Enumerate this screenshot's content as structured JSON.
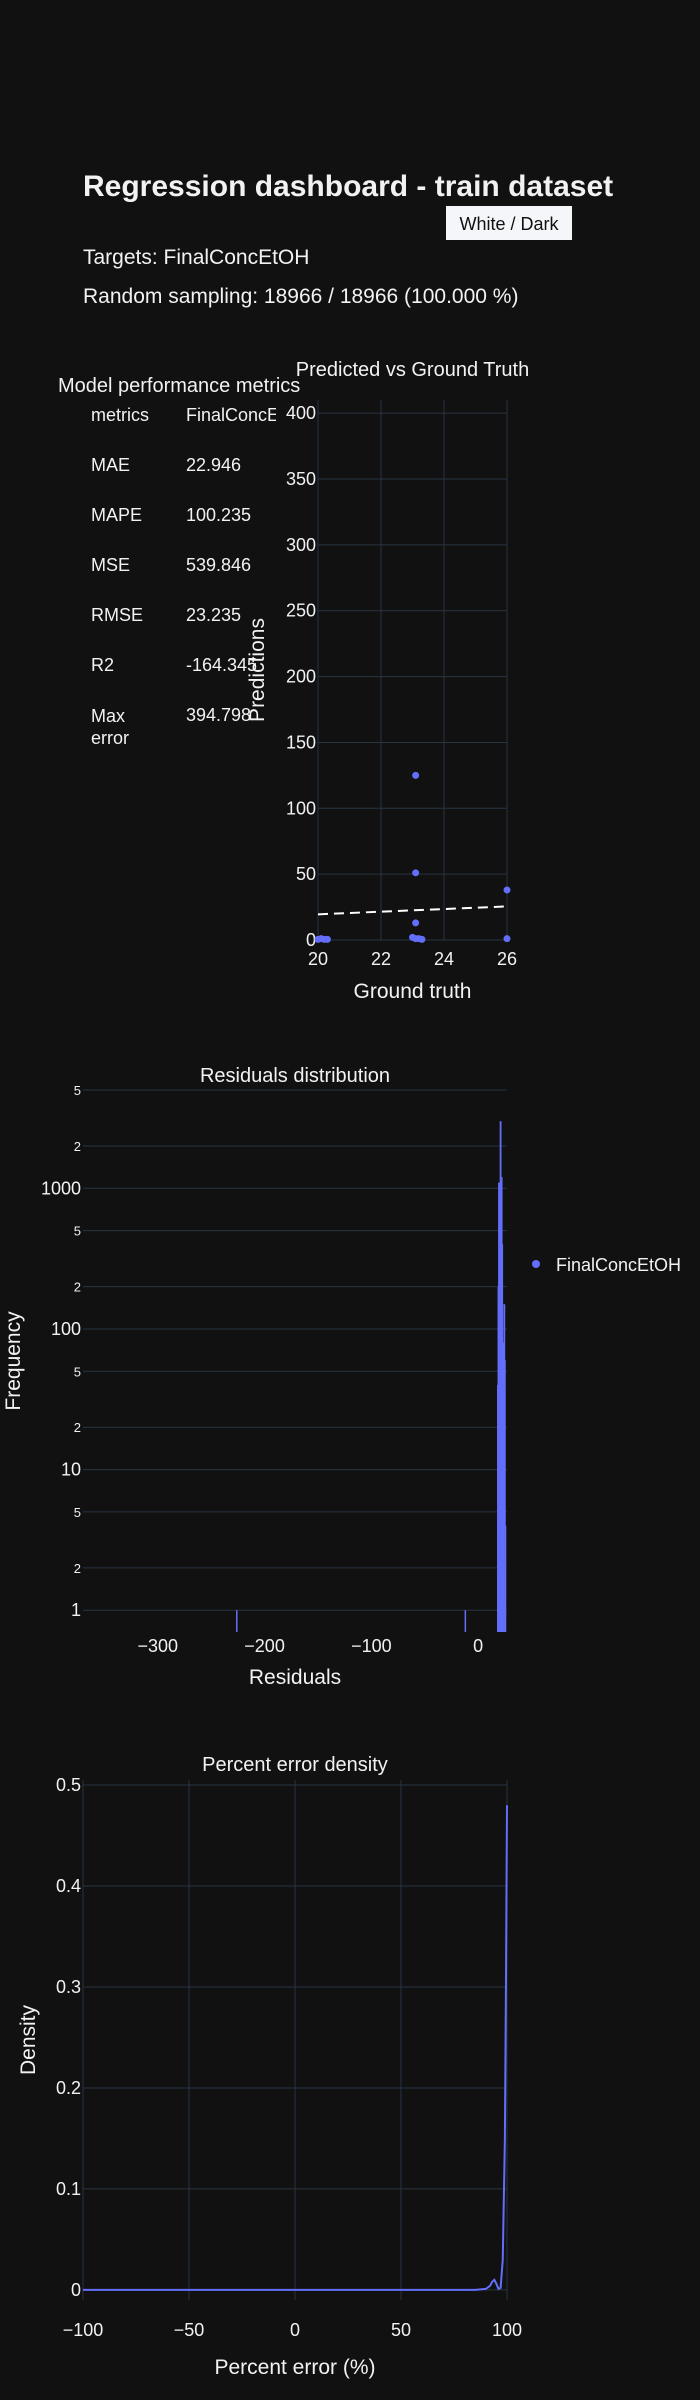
{
  "header": {
    "title": "Regression dashboard - train dataset",
    "targets": "Targets: FinalConcEtOH",
    "sampling": "Random sampling: 18966 / 18966 (100.000 %)",
    "theme_button": "White / Dark"
  },
  "metrics": {
    "title": "Model performance metrics",
    "col_header": "metrics",
    "target_header": "FinalConcEtOH",
    "rows": [
      {
        "name": "MAE",
        "value": "22.946"
      },
      {
        "name": "MAPE",
        "value": "100.235"
      },
      {
        "name": "MSE",
        "value": "539.846"
      },
      {
        "name": "RMSE",
        "value": "23.235"
      },
      {
        "name": "R2",
        "value": "-164.345"
      },
      {
        "name": "Max error",
        "value": "394.798"
      }
    ]
  },
  "colors": {
    "accent": "#636efa",
    "background": "#111111",
    "grid": "#283442",
    "text": "#f2f2f2"
  },
  "chart_data": [
    {
      "type": "scatter",
      "title": "Predicted vs Ground Truth",
      "xlabel": "Ground truth",
      "ylabel": "Predictions",
      "xlim": [
        20,
        26
      ],
      "ylim": [
        0,
        410
      ],
      "x_ticks": [
        20,
        22,
        24,
        26
      ],
      "y_ticks": [
        0,
        50,
        100,
        150,
        200,
        250,
        300,
        350,
        400
      ],
      "points": [
        {
          "x": 20.0,
          "y": 0.5
        },
        {
          "x": 20.1,
          "y": 1
        },
        {
          "x": 20.2,
          "y": 0.5
        },
        {
          "x": 20.3,
          "y": 0.5
        },
        {
          "x": 23.1,
          "y": 125
        },
        {
          "x": 23.1,
          "y": 51
        },
        {
          "x": 23.1,
          "y": 13
        },
        {
          "x": 23.0,
          "y": 2
        },
        {
          "x": 23.1,
          "y": 1
        },
        {
          "x": 23.2,
          "y": 1
        },
        {
          "x": 23.3,
          "y": 0.5
        },
        {
          "x": 26.0,
          "y": 38
        },
        {
          "x": 26.0,
          "y": 1
        }
      ],
      "fit_line": {
        "x": [
          20,
          26
        ],
        "y": [
          19.5,
          25.5
        ]
      },
      "grid": true
    },
    {
      "type": "bar",
      "title": "Residuals distribution",
      "xlabel": "Residuals",
      "ylabel": "Frequency",
      "y_scale": "log",
      "xlim": [
        -370,
        27
      ],
      "ylim": [
        0.7,
        5000
      ],
      "x_ticks": [
        -300,
        -200,
        -100,
        0
      ],
      "y_major_ticks": [
        1,
        10,
        100,
        1000
      ],
      "y_minor_ticks": [
        2,
        5,
        20,
        50,
        200,
        500,
        2000,
        5000
      ],
      "legend": "right",
      "series": [
        {
          "name": "FinalConcEtOH",
          "bins": [
            {
              "x": -226,
              "count": 1
            },
            {
              "x": -12,
              "count": 1
            },
            {
              "x": 18.5,
              "count": 40
            },
            {
              "x": 19,
              "count": 200
            },
            {
              "x": 19.5,
              "count": 1100
            },
            {
              "x": 20,
              "count": 60
            },
            {
              "x": 20.5,
              "count": 900
            },
            {
              "x": 21,
              "count": 3000
            },
            {
              "x": 21.5,
              "count": 150
            },
            {
              "x": 22,
              "count": 1200
            },
            {
              "x": 22.5,
              "count": 400
            },
            {
              "x": 23,
              "count": 80
            },
            {
              "x": 23.5,
              "count": 5
            },
            {
              "x": 24,
              "count": 3
            },
            {
              "x": 24.5,
              "count": 150
            },
            {
              "x": 25,
              "count": 60
            },
            {
              "x": 25.5,
              "count": 4
            }
          ]
        }
      ]
    },
    {
      "type": "line",
      "title": "Percent error density",
      "xlabel": "Percent error (%)",
      "ylabel": "Density",
      "xlim": [
        -100,
        100
      ],
      "ylim": [
        -0.01,
        0.505
      ],
      "x_ticks": [
        -100,
        -50,
        0,
        50,
        100
      ],
      "y_ticks": [
        0,
        0.1,
        0.2,
        0.3,
        0.4,
        0.5
      ],
      "x": [
        -100,
        -50,
        0,
        50,
        85,
        90,
        92,
        93,
        94,
        95,
        96,
        97,
        98,
        99,
        99.5,
        100
      ],
      "y": [
        0,
        0,
        0,
        0,
        0,
        0.001,
        0.004,
        0.008,
        0.01,
        0.006,
        0.001,
        0.002,
        0.03,
        0.15,
        0.3,
        0.48
      ],
      "grid": true
    }
  ]
}
